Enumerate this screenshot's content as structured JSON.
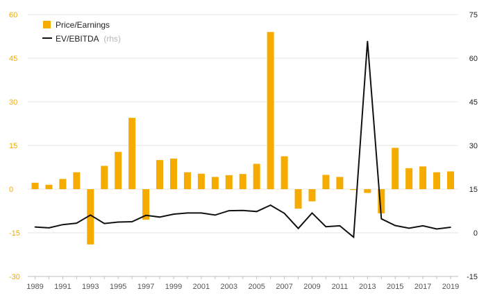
{
  "chart_data": {
    "type": "bar+line",
    "legend": {
      "bar_label": "Price/Earnings",
      "line_label": "EV/EBITDA",
      "line_suffix": "(rhs)",
      "position": "top-left"
    },
    "colors": {
      "bar": "#f5ab00",
      "line": "#111111",
      "left_ticks": "#f2a900",
      "grid": "#e6e6e6"
    },
    "grid": true,
    "x": [
      1989,
      1990,
      1991,
      1992,
      1993,
      1994,
      1995,
      1996,
      1997,
      1998,
      1999,
      2000,
      2001,
      2002,
      2003,
      2004,
      2005,
      2006,
      2007,
      2008,
      2009,
      2010,
      2011,
      2012,
      2013,
      2014,
      2015,
      2016,
      2017,
      2018,
      2019
    ],
    "x_tick_labels": [
      "1989",
      "1991",
      "1993",
      "1995",
      "1997",
      "1999",
      "2001",
      "2003",
      "2005",
      "2007",
      "2009",
      "2011",
      "2013",
      "2015",
      "2017",
      "2019"
    ],
    "series": [
      {
        "name": "Price/Earnings",
        "type": "bar",
        "axis": "left",
        "values": [
          2.2,
          1.5,
          3.5,
          5.8,
          -19.0,
          8.0,
          12.8,
          24.5,
          -10.5,
          10.0,
          10.5,
          5.8,
          5.3,
          4.2,
          4.8,
          5.2,
          8.7,
          54.0,
          11.3,
          -6.7,
          -4.2,
          4.9,
          4.2,
          -0.3,
          -1.3,
          -8.3,
          14.2,
          7.2,
          7.8,
          5.8,
          6.1
        ]
      },
      {
        "name": "EV/EBITDA",
        "type": "line",
        "axis": "right",
        "values": [
          2.0,
          1.7,
          2.8,
          3.3,
          6.1,
          3.2,
          3.7,
          3.8,
          6.0,
          5.4,
          6.4,
          6.8,
          6.8,
          6.1,
          7.6,
          7.7,
          7.3,
          9.5,
          6.7,
          1.5,
          6.8,
          2.1,
          2.4,
          -1.5,
          65.8,
          4.8,
          2.5,
          1.6,
          2.4,
          1.3,
          1.9
        ]
      }
    ],
    "y_left": {
      "ticks": [
        "60",
        "45",
        "30",
        "15",
        "0",
        "-15",
        "-30"
      ],
      "range": [
        -30,
        60
      ]
    },
    "y_right": {
      "ticks": [
        "75",
        "60",
        "45",
        "30",
        "15",
        "0",
        "-15"
      ],
      "range": [
        -15,
        75
      ]
    }
  }
}
